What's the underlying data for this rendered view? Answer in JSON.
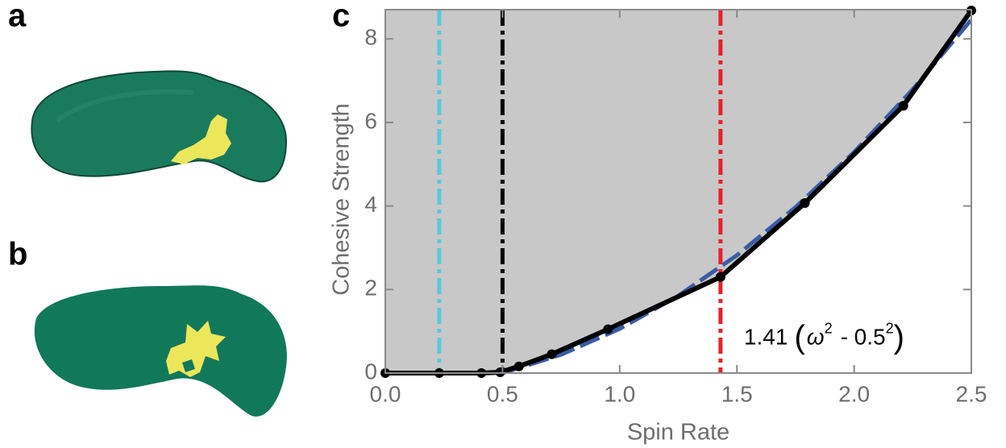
{
  "panels": [
    {
      "label": "a"
    },
    {
      "label": "b"
    }
  ],
  "chart_data": {
    "type": "line",
    "panel_label": "c",
    "xlabel": "Spin Rate",
    "ylabel": "Cohesive Strength",
    "xlim": [
      0,
      2.5
    ],
    "ylim": [
      0,
      8.7
    ],
    "xticks": [
      {
        "value": 0,
        "label": "0.0"
      },
      0.5,
      {
        "value": 1,
        "label": "1.0"
      },
      1.5,
      {
        "value": 2,
        "label": "2.0"
      },
      2.5
    ],
    "yticks": [
      0,
      2,
      4,
      6,
      8
    ],
    "shade_color": "#c8c8c8",
    "series": [
      {
        "color": "#000000",
        "style": "solid",
        "markers": true,
        "x": [
          0,
          0.23,
          0.41,
          0.49,
          0.57,
          0.71,
          0.95,
          1.43,
          1.79,
          2.21,
          2.5
        ],
        "values": [
          0,
          0,
          0,
          0.02,
          0.16,
          0.45,
          1.05,
          2.3,
          4.07,
          6.4,
          8.68
        ]
      },
      {
        "color": "#3b5ba5",
        "style": "dashed",
        "markers": false,
        "x": [
          0.5,
          0.75,
          1.0,
          1.25,
          1.5,
          1.75,
          2.0,
          2.25,
          2.5
        ],
        "values": [
          0,
          0.44,
          1.06,
          1.85,
          2.82,
          3.97,
          5.29,
          6.79,
          8.46
        ]
      }
    ],
    "vlines": [
      {
        "x": 0.23,
        "color": "#5bc8dc"
      },
      {
        "x": 0.5,
        "color": "#000000"
      },
      {
        "x": 1.43,
        "color": "#e8202a"
      }
    ],
    "annotation": {
      "x": 1.53,
      "y": 0.82,
      "parts": [
        "1.41",
        "(",
        "ω",
        "2",
        "-  0.5",
        "2",
        ")"
      ]
    }
  }
}
